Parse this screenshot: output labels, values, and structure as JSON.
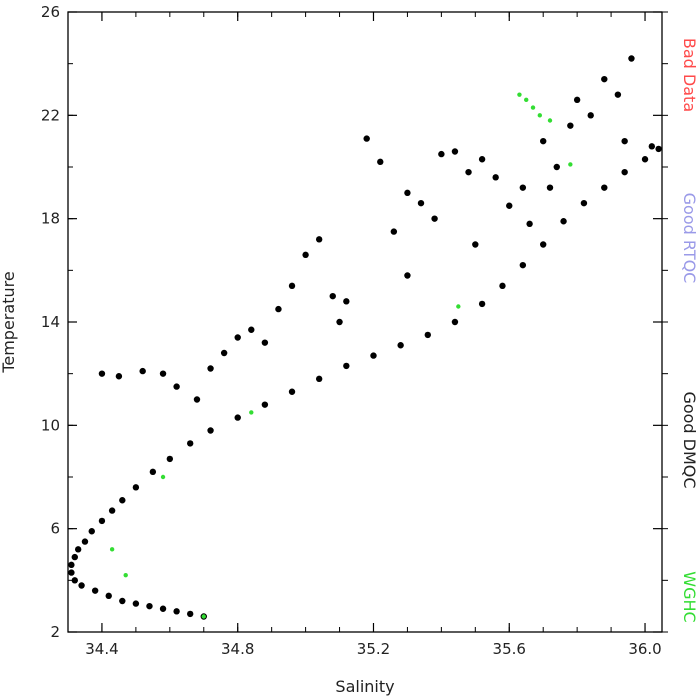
{
  "chart_data": {
    "type": "scatter",
    "title": "",
    "xlabel": "Salinity",
    "ylabel": "Temperature",
    "xlim": [
      34.3,
      36.05
    ],
    "ylim": [
      2,
      26
    ],
    "x_ticks": [
      34.4,
      34.8,
      35.2,
      35.6,
      36.0
    ],
    "x_tick_labels": [
      "34.4",
      "34.8",
      "35.2",
      "35.6",
      "36.0"
    ],
    "y_ticks": [
      2,
      6,
      10,
      14,
      18,
      22,
      26
    ],
    "y_tick_labels": [
      "2",
      "6",
      "10",
      "14",
      "18",
      "22",
      "26"
    ],
    "grid": false,
    "legend": {
      "placement": "right-vertical",
      "entries": [
        {
          "label": "Bad Data",
          "color": "#ff4a4a"
        },
        {
          "label": "Good RTQC",
          "color": "#9a9ae8"
        },
        {
          "label": "Good DMQC",
          "color": "#222222"
        },
        {
          "label": "WGHC",
          "color": "#33dd33"
        }
      ]
    },
    "series": [
      {
        "color": "#000000",
        "points": [
          [
            34.7,
            2.6
          ],
          [
            34.66,
            2.7
          ],
          [
            34.62,
            2.8
          ],
          [
            34.58,
            2.9
          ],
          [
            34.54,
            3.0
          ],
          [
            34.5,
            3.1
          ],
          [
            34.46,
            3.2
          ],
          [
            34.42,
            3.4
          ],
          [
            34.38,
            3.6
          ],
          [
            34.34,
            3.8
          ],
          [
            34.32,
            4.0
          ],
          [
            34.31,
            4.3
          ],
          [
            34.31,
            4.6
          ],
          [
            34.32,
            4.9
          ],
          [
            34.33,
            5.2
          ],
          [
            34.35,
            5.5
          ],
          [
            34.37,
            5.9
          ],
          [
            34.4,
            6.3
          ],
          [
            34.43,
            6.7
          ],
          [
            34.46,
            7.1
          ],
          [
            34.5,
            7.6
          ],
          [
            34.55,
            8.2
          ],
          [
            34.6,
            8.7
          ],
          [
            34.66,
            9.3
          ],
          [
            34.72,
            9.8
          ],
          [
            34.8,
            10.3
          ],
          [
            34.88,
            10.8
          ],
          [
            34.96,
            11.3
          ],
          [
            35.04,
            11.8
          ],
          [
            35.12,
            12.3
          ],
          [
            35.2,
            12.7
          ],
          [
            35.28,
            13.1
          ],
          [
            35.36,
            13.5
          ],
          [
            35.44,
            14.0
          ],
          [
            35.52,
            14.7
          ],
          [
            35.58,
            15.4
          ],
          [
            35.64,
            16.2
          ],
          [
            35.7,
            17.0
          ],
          [
            35.76,
            17.9
          ],
          [
            35.82,
            18.6
          ],
          [
            35.88,
            19.2
          ],
          [
            35.94,
            19.8
          ],
          [
            36.0,
            20.3
          ],
          [
            36.04,
            20.7
          ],
          [
            34.4,
            12.0
          ],
          [
            34.45,
            11.9
          ],
          [
            34.52,
            12.1
          ],
          [
            34.58,
            12.0
          ],
          [
            34.62,
            11.5
          ],
          [
            34.68,
            11.0
          ],
          [
            34.72,
            12.2
          ],
          [
            34.76,
            12.8
          ],
          [
            34.8,
            13.4
          ],
          [
            34.84,
            13.7
          ],
          [
            34.88,
            13.2
          ],
          [
            34.92,
            14.5
          ],
          [
            34.96,
            15.4
          ],
          [
            35.0,
            16.6
          ],
          [
            35.04,
            17.2
          ],
          [
            35.08,
            15.0
          ],
          [
            35.12,
            14.8
          ],
          [
            35.18,
            21.1
          ],
          [
            35.22,
            20.2
          ],
          [
            35.26,
            17.5
          ],
          [
            35.3,
            19.0
          ],
          [
            35.34,
            18.6
          ],
          [
            35.38,
            18.0
          ],
          [
            35.4,
            20.5
          ],
          [
            35.44,
            20.6
          ],
          [
            35.48,
            19.8
          ],
          [
            35.52,
            20.3
          ],
          [
            35.56,
            19.6
          ],
          [
            35.6,
            18.5
          ],
          [
            35.64,
            19.2
          ],
          [
            35.66,
            17.8
          ],
          [
            35.7,
            21.0
          ],
          [
            35.74,
            20.0
          ],
          [
            35.78,
            21.6
          ],
          [
            35.8,
            22.6
          ],
          [
            35.84,
            22.0
          ],
          [
            35.88,
            23.4
          ],
          [
            35.92,
            22.8
          ],
          [
            35.96,
            24.2
          ],
          [
            35.94,
            21.0
          ],
          [
            36.02,
            20.8
          ],
          [
            35.72,
            19.2
          ],
          [
            35.5,
            17.0
          ],
          [
            35.3,
            15.8
          ],
          [
            35.1,
            14.0
          ]
        ]
      },
      {
        "color": "#33dd33",
        "points": [
          [
            35.63,
            22.8
          ],
          [
            35.65,
            22.6
          ],
          [
            35.67,
            22.3
          ],
          [
            35.69,
            22.0
          ],
          [
            35.72,
            21.8
          ],
          [
            34.7,
            2.6
          ],
          [
            34.43,
            5.2
          ],
          [
            34.47,
            4.2
          ],
          [
            34.58,
            8.0
          ],
          [
            34.84,
            10.5
          ],
          [
            35.45,
            14.6
          ],
          [
            35.78,
            20.1
          ]
        ]
      }
    ]
  }
}
